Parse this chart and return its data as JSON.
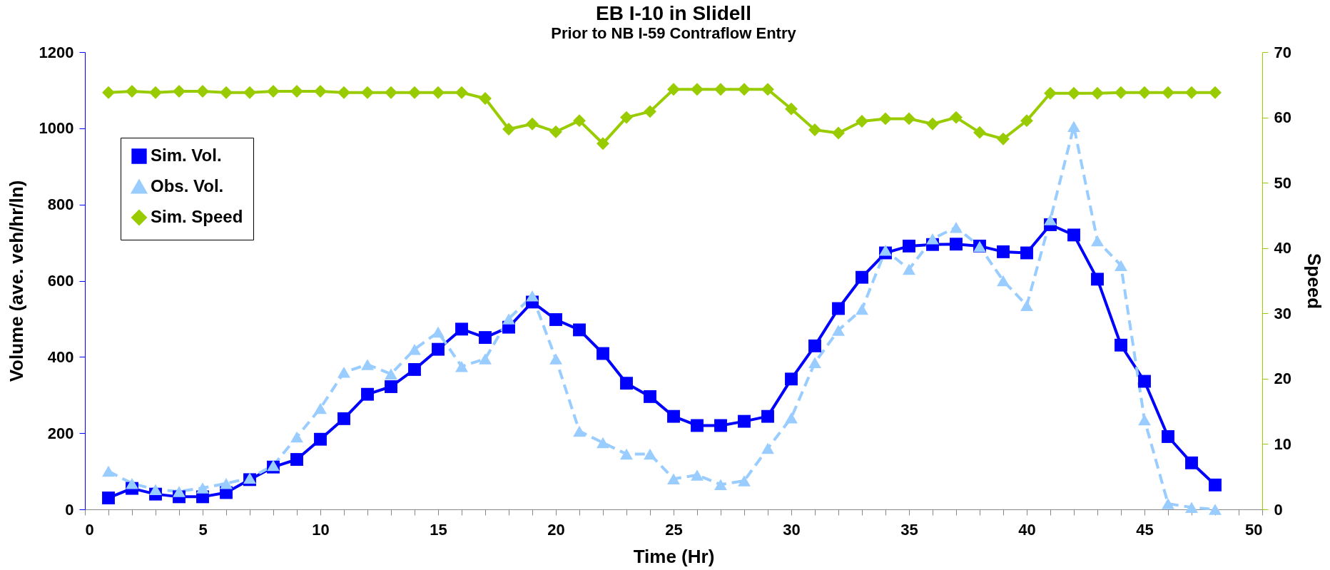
{
  "chart_data": {
    "type": "line",
    "title": "EB I-10 in Slidell",
    "subtitle": "Prior to NB I-59 Contraflow Entry",
    "xlabel": "Time (Hr)",
    "ylabel": "Volume (ave. veh/hr/ln)",
    "y2label": "Speed",
    "x": [
      1,
      2,
      3,
      4,
      5,
      6,
      7,
      8,
      9,
      10,
      11,
      12,
      13,
      14,
      15,
      16,
      17,
      18,
      19,
      20,
      21,
      22,
      23,
      24,
      25,
      26,
      27,
      28,
      29,
      30,
      31,
      32,
      33,
      34,
      35,
      36,
      37,
      38,
      39,
      40,
      41,
      42,
      43,
      44,
      45,
      46,
      47,
      48
    ],
    "series": [
      {
        "name": "Sim. Vol.",
        "color": "#0000ff",
        "marker": "square",
        "line_style": "solid",
        "values": [
          30,
          55,
          40,
          33,
          33,
          44,
          78,
          111,
          131,
          184,
          238,
          302,
          322,
          367,
          420,
          473,
          451,
          478,
          544,
          498,
          471,
          409,
          331,
          296,
          244,
          220,
          220,
          231,
          244,
          342,
          429,
          527,
          609,
          673,
          691,
          695,
          696,
          691,
          676,
          673,
          747,
          720,
          604,
          431,
          336,
          191,
          122,
          64
        ]
      },
      {
        "name": "Obs. Vol.",
        "color": "#99ccff",
        "marker": "triangle",
        "line_style": "dashed",
        "values": [
          100,
          68,
          52,
          47,
          56,
          68,
          82,
          115,
          190,
          265,
          360,
          380,
          355,
          420,
          465,
          375,
          395,
          500,
          560,
          395,
          205,
          175,
          145,
          145,
          80,
          90,
          65,
          75,
          160,
          240,
          385,
          470,
          525,
          680,
          630,
          710,
          740,
          690,
          600,
          535,
          760,
          1005,
          705,
          640,
          235,
          15,
          5,
          0
        ]
      },
      {
        "name": "Sim. Speed",
        "color": "#99cc00",
        "marker": "diamond",
        "line_style": "solid",
        "axis": "y2",
        "values": [
          63.8,
          64,
          63.8,
          64,
          64,
          63.8,
          63.8,
          64,
          64,
          64,
          63.8,
          63.8,
          63.8,
          63.8,
          63.8,
          63.8,
          62.9,
          58.2,
          59,
          57.8,
          59.5,
          56,
          60,
          60.9,
          64.3,
          64.3,
          64.3,
          64.3,
          64.3,
          61.3,
          58.1,
          57.6,
          59.4,
          59.8,
          59.8,
          59,
          60,
          57.7,
          56.7,
          59.5,
          63.7,
          63.7,
          63.7,
          63.8,
          63.8,
          63.8,
          63.8,
          63.8
        ]
      }
    ],
    "xlim": [
      0,
      50
    ],
    "xticks": [
      0,
      {
        "value": 1,
        "label": null
      },
      {
        "value": 2,
        "label": null
      },
      {
        "value": 3,
        "label": null
      },
      {
        "value": 4,
        "label": null
      },
      5,
      {
        "value": 6,
        "label": null
      },
      {
        "value": 7,
        "label": null
      },
      {
        "value": 8,
        "label": null
      },
      {
        "value": 9,
        "label": null
      },
      10,
      {
        "value": 11,
        "label": null
      },
      {
        "value": 12,
        "label": null
      },
      {
        "value": 13,
        "label": null
      },
      {
        "value": 14,
        "label": null
      },
      15,
      {
        "value": 16,
        "label": null
      },
      {
        "value": 17,
        "label": null
      },
      {
        "value": 18,
        "label": null
      },
      {
        "value": 19,
        "label": null
      },
      20,
      {
        "value": 21,
        "label": null
      },
      {
        "value": 22,
        "label": null
      },
      {
        "value": 23,
        "label": null
      },
      {
        "value": 24,
        "label": null
      },
      25,
      {
        "value": 26,
        "label": null
      },
      {
        "value": 27,
        "label": null
      },
      {
        "value": 28,
        "label": null
      },
      {
        "value": 29,
        "label": null
      },
      30,
      {
        "value": 31,
        "label": null
      },
      {
        "value": 32,
        "label": null
      },
      {
        "value": 33,
        "label": null
      },
      {
        "value": 34,
        "label": null
      },
      35,
      {
        "value": 36,
        "label": null
      },
      {
        "value": 37,
        "label": null
      },
      {
        "value": 38,
        "label": null
      },
      {
        "value": 39,
        "label": null
      },
      40,
      {
        "value": 41,
        "label": null
      },
      {
        "value": 42,
        "label": null
      },
      {
        "value": 43,
        "label": null
      },
      {
        "value": 44,
        "label": null
      },
      45,
      {
        "value": 46,
        "label": null
      },
      {
        "value": 47,
        "label": null
      },
      {
        "value": 48,
        "label": null
      },
      {
        "value": 49,
        "label": null
      },
      50
    ],
    "ylim": [
      0,
      1200
    ],
    "yticks": [
      0,
      200,
      400,
      600,
      800,
      1000,
      1200
    ],
    "y2lim": [
      0,
      70
    ],
    "y2ticks": [
      0,
      10,
      20,
      30,
      40,
      50,
      60,
      70
    ],
    "grid": false,
    "legend": "top left"
  }
}
